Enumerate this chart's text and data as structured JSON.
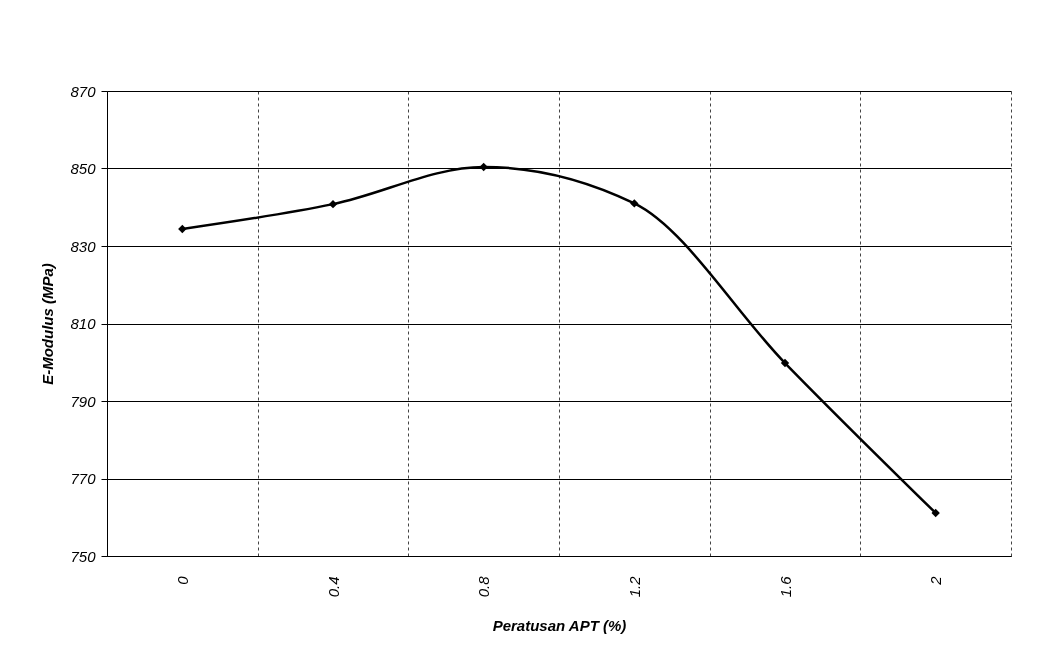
{
  "chart_data": {
    "type": "line",
    "xlabel": "Peratusan APT  (%)",
    "ylabel": "E-Modulus (MPa)",
    "categories": [
      "0",
      "0.4",
      "0.8",
      "1.2",
      "1.6",
      "2"
    ],
    "series": [
      {
        "color": "#000000",
        "values": [
          834.4,
          840.8,
          850.4,
          841,
          799.8,
          761.1
        ]
      }
    ],
    "ylim": [
      750,
      870
    ],
    "yticks": [
      750,
      770,
      790,
      810,
      830,
      850,
      870
    ],
    "grid": true,
    "marker": "diamond",
    "line_style": "solid"
  }
}
